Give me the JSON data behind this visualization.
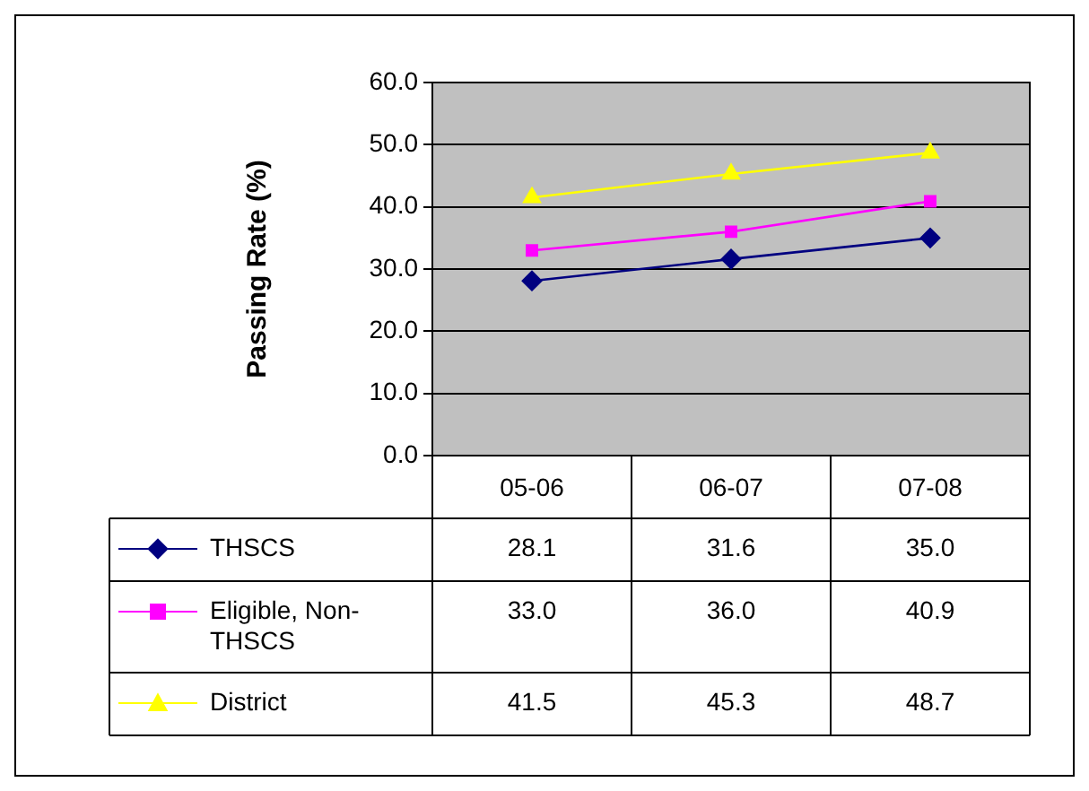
{
  "chart_data": {
    "type": "line",
    "ylabel": "Passing Rate (%)",
    "categories": [
      "05-06",
      "06-07",
      "07-08"
    ],
    "series": [
      {
        "name": "THSCS",
        "color": "#000080",
        "marker": "diamond",
        "values": [
          28.1,
          31.6,
          35.0
        ],
        "value_labels": [
          "28.1",
          "31.6",
          "35.0"
        ]
      },
      {
        "name": "Eligible, Non-THSCS",
        "color": "#ff00ff",
        "marker": "square",
        "values": [
          33.0,
          36.0,
          40.9
        ],
        "value_labels": [
          "33.0",
          "36.0",
          "40.9"
        ]
      },
      {
        "name": "District",
        "color": "#ffff00",
        "marker": "triangle",
        "values": [
          41.5,
          45.3,
          48.7
        ],
        "value_labels": [
          "41.5",
          "45.3",
          "48.7"
        ]
      }
    ],
    "ylim": [
      0,
      60
    ],
    "yticks": [
      {
        "value": 0,
        "label": "0.0"
      },
      {
        "value": 10,
        "label": "10.0"
      },
      {
        "value": 20,
        "label": "20.0"
      },
      {
        "value": 30,
        "label": "30.0"
      },
      {
        "value": 40,
        "label": "40.0"
      },
      {
        "value": 50,
        "label": "50.0"
      },
      {
        "value": 60,
        "label": "60.0"
      }
    ],
    "grid": "y",
    "legend": "bottom",
    "data_labels": true
  }
}
